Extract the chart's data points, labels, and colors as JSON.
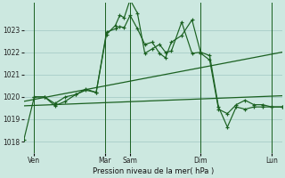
{
  "background_color": "#cce8e0",
  "grid_color": "#a8ccc8",
  "line_color": "#1a6020",
  "xlabel": "Pression niveau de la mer( hPa )",
  "ylim": [
    1017.5,
    1024.2
  ],
  "yticks": [
    1018,
    1019,
    1020,
    1021,
    1022,
    1023
  ],
  "xlim": [
    0,
    175
  ],
  "x_tick_positions": [
    7,
    55,
    72,
    120,
    168
  ],
  "x_tick_labels": [
    "Ven",
    "Mar",
    "Sam",
    "Dim",
    "Lun"
  ],
  "x_vline_positions": [
    7,
    55,
    72,
    120,
    168
  ],
  "series1_x": [
    0,
    7,
    14,
    21,
    28,
    35,
    42,
    49,
    56,
    62,
    65,
    68,
    72,
    77,
    82,
    87,
    92,
    96,
    100,
    107,
    114,
    120,
    126,
    132,
    138,
    144,
    150,
    156,
    162,
    168,
    175
  ],
  "series1_y": [
    1018.1,
    1020.0,
    1020.0,
    1019.6,
    1019.8,
    1020.1,
    1020.3,
    1020.2,
    1022.8,
    1023.2,
    1023.65,
    1023.55,
    1024.35,
    1023.75,
    1021.95,
    1022.15,
    1022.35,
    1022.0,
    1022.05,
    1023.35,
    1021.95,
    1022.0,
    1021.85,
    1019.55,
    1018.65,
    1019.55,
    1019.45,
    1019.55,
    1019.55,
    1019.55,
    1019.55
  ],
  "series2_x": [
    7,
    14,
    21,
    28,
    35,
    42,
    49,
    56,
    62,
    65,
    68,
    72,
    77,
    82,
    87,
    92,
    96,
    100,
    107,
    114,
    120,
    126,
    132,
    138,
    144,
    150,
    156,
    162,
    168,
    175
  ],
  "series2_y": [
    1020.0,
    1020.0,
    1019.7,
    1020.0,
    1020.1,
    1020.35,
    1020.2,
    1022.9,
    1023.05,
    1023.15,
    1023.1,
    1023.65,
    1023.05,
    1022.35,
    1022.45,
    1021.95,
    1021.75,
    1022.45,
    1022.75,
    1023.45,
    1021.95,
    1021.65,
    1019.45,
    1019.25,
    1019.65,
    1019.85,
    1019.65,
    1019.65,
    1019.55,
    1019.55
  ],
  "series3_x": [
    0,
    175
  ],
  "series3_y": [
    1019.8,
    1022.0
  ],
  "series4_x": [
    0,
    175
  ],
  "series4_y": [
    1019.6,
    1020.05
  ]
}
